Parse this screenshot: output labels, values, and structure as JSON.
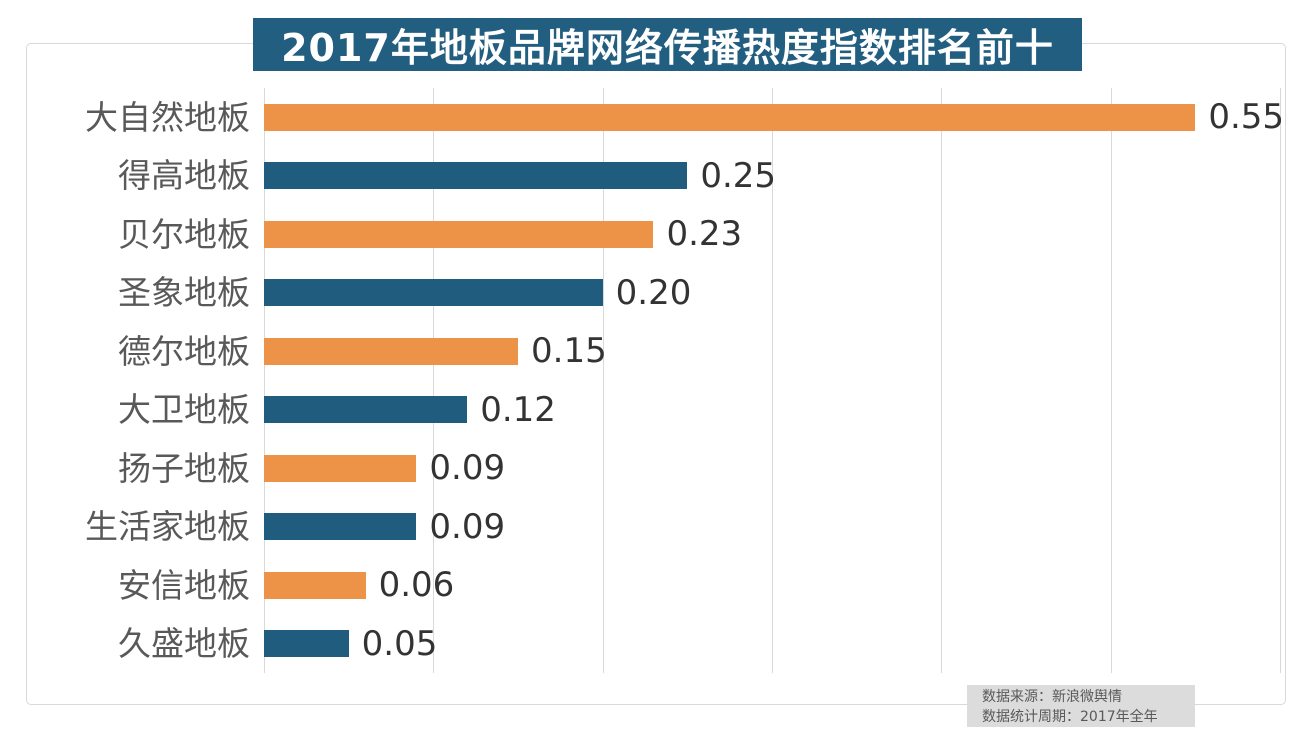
{
  "title": "2017年地板品牌网络传播热度指数排名前十",
  "source": {
    "line1": "数据来源：新浪微舆情",
    "line2": "数据统计周期：2017年全年"
  },
  "colors": {
    "title_background": "#215e80",
    "title_text": "#ffffff",
    "bar_orange": "#ed9348",
    "bar_blue": "#1f5c7e",
    "gridline": "#d9d9d9",
    "category_label": "#595959",
    "value_label": "#333333",
    "source_box_background": "#dcdcdc",
    "source_text": "#595959",
    "panel_border": "#d9d9d9"
  },
  "chart_data": {
    "type": "bar",
    "orientation": "horizontal",
    "title": "2017年地板品牌网络传播热度指数排名前十",
    "categories": [
      "大自然地板",
      "得高地板",
      "贝尔地板",
      "圣象地板",
      "德尔地板",
      "大卫地板",
      "扬子地板",
      "生活家地板",
      "安信地板",
      "久盛地板"
    ],
    "values": [
      0.55,
      0.25,
      0.23,
      0.2,
      0.15,
      0.12,
      0.09,
      0.09,
      0.06,
      0.05
    ],
    "value_labels": [
      "0.55",
      "0.25",
      "0.23",
      "0.20",
      "0.15",
      "0.12",
      "0.09",
      "0.09",
      "0.06",
      "0.05"
    ],
    "xlabel": "",
    "ylabel": "",
    "xlim": [
      0,
      0.6
    ],
    "gridline_step": 0.1,
    "grid": true,
    "legend": false,
    "bar_color_pattern": [
      "#ed9348",
      "#1f5c7e"
    ],
    "annotations": [
      "数据来源：新浪微舆情",
      "数据统计周期：2017年全年"
    ]
  }
}
